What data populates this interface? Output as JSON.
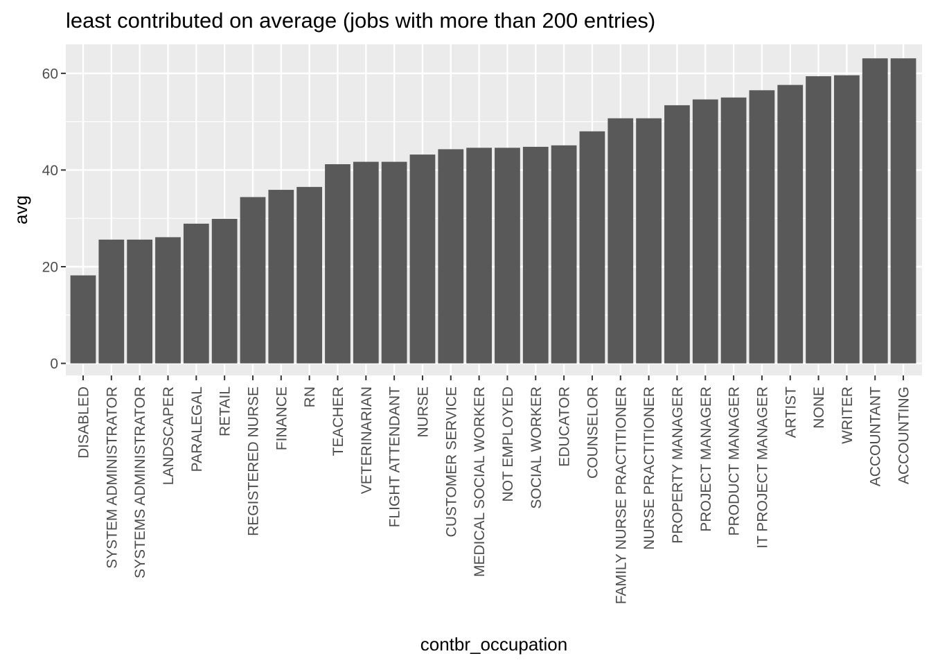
{
  "chart_data": {
    "type": "bar",
    "title": "least contributed on average (jobs with more than 200 entries)",
    "xlabel": "contbr_occupation",
    "ylabel": "avg",
    "ylim": [
      -2.5,
      66
    ],
    "yticks": [
      0,
      20,
      40,
      60
    ],
    "grid": true,
    "colors": {
      "bar": "#595959",
      "panel": "#ebebeb",
      "grid_major": "#ffffff",
      "tick": "#333333",
      "tick_label": "#4d4d4d"
    },
    "categories": [
      "DISABLED",
      "SYSTEM ADMINISTRATOR",
      "SYSTEMS ADMINISTRATOR",
      "LANDSCAPER",
      "PARALEGAL",
      "RETAIL",
      "REGISTERED NURSE",
      "FINANCE",
      "RN",
      "TEACHER",
      "VETERINARIAN",
      "FLIGHT ATTENDANT",
      "NURSE",
      "CUSTOMER SERVICE",
      "MEDICAL SOCIAL WORKER",
      "NOT EMPLOYED",
      "SOCIAL WORKER",
      "EDUCATOR",
      "COUNSELOR",
      "FAMILY NURSE PRACTITIONER",
      "NURSE PRACTITIONER",
      "PROPERTY MANAGER",
      "PROJECT MANAGER",
      "PRODUCT MANAGER",
      "IT PROJECT MANAGER",
      "ARTIST",
      "NONE",
      "WRITER",
      "ACCOUNTANT",
      "ACCOUNTING"
    ],
    "values": [
      18.2,
      25.6,
      25.6,
      26.1,
      28.9,
      29.9,
      34.4,
      35.9,
      36.5,
      41.2,
      41.7,
      41.7,
      43.2,
      44.3,
      44.6,
      44.6,
      44.8,
      45.1,
      48.0,
      50.7,
      50.7,
      53.4,
      54.6,
      55.0,
      56.5,
      57.6,
      59.4,
      59.6,
      63.1,
      63.1
    ]
  }
}
